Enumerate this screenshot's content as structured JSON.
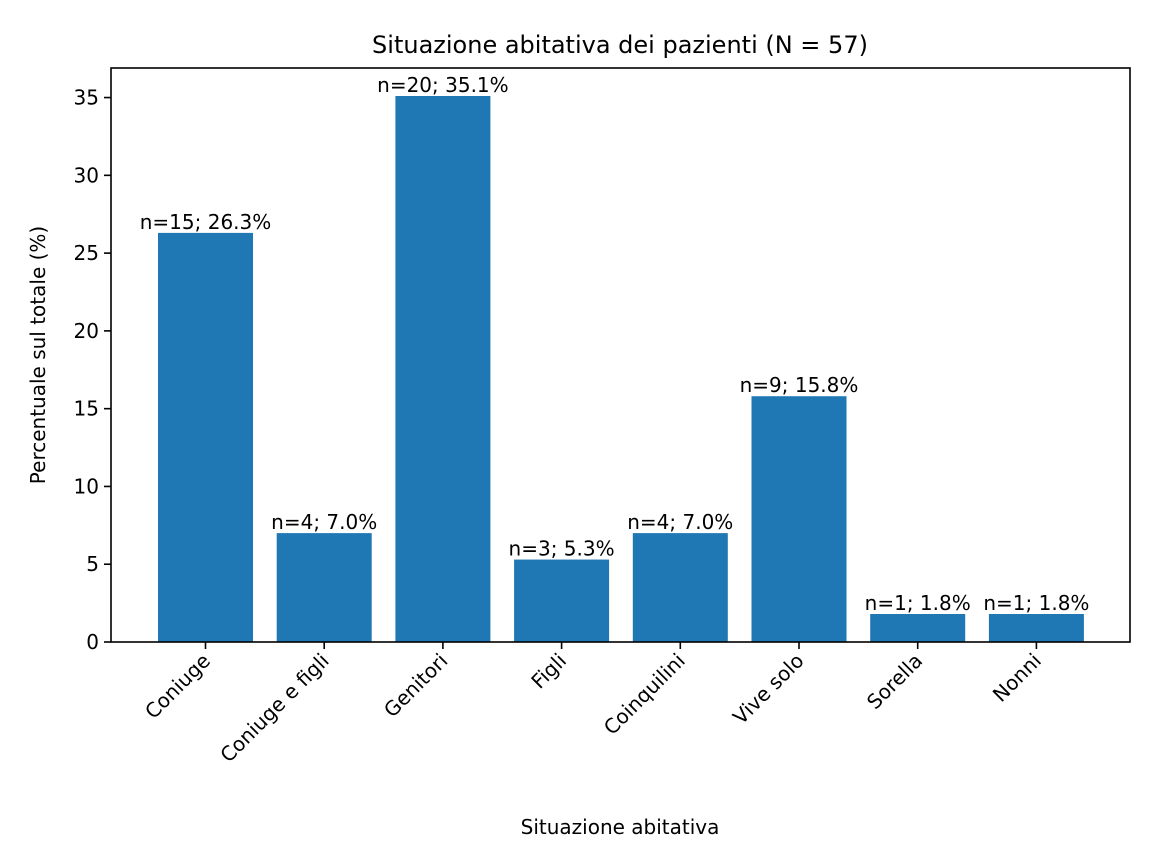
{
  "chart_data": {
    "type": "bar",
    "title": "Situazione abitativa dei pazienti (N = 57)",
    "xlabel": "Situazione abitativa",
    "ylabel": "Percentuale sul totale (%)",
    "categories": [
      "Coniuge",
      "Coniuge e figli",
      "Genitori",
      "Figli",
      "Coinquilini",
      "Vive solo",
      "Sorella",
      "Nonni"
    ],
    "values": [
      26.3,
      7.0,
      35.1,
      5.3,
      7.0,
      15.8,
      1.8,
      1.8
    ],
    "data_labels": [
      "n=15; 26.3%",
      "n=4; 7.0%",
      "n=20; 35.1%",
      "n=3; 5.3%",
      "n=4; 7.0%",
      "n=9; 15.8%",
      "n=1; 1.8%",
      "n=1; 1.8%"
    ],
    "yticks": [
      0,
      5,
      10,
      15,
      20,
      25,
      30,
      35
    ],
    "ylim": [
      0,
      36.9
    ],
    "bar_color": "#1f77b4",
    "grid": false,
    "legend": "none"
  }
}
